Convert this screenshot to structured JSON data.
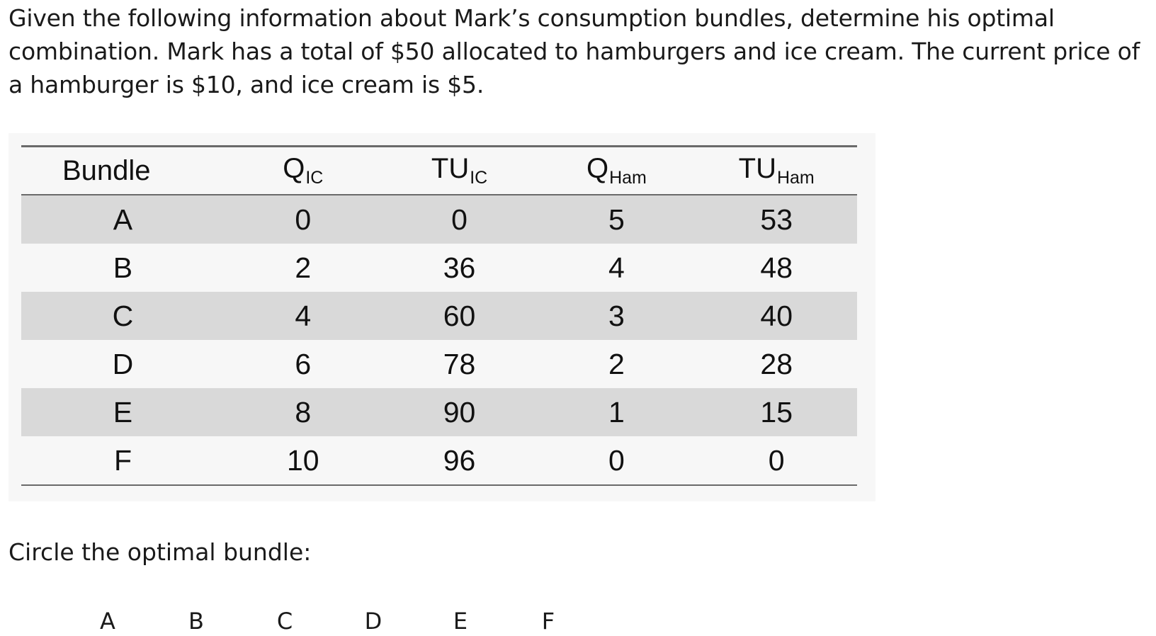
{
  "question": {
    "text": "Given the following information about Mark’s consumption bundles, determine his optimal combination.  Mark has a total of $50 allocated to hamburgers and ice cream.  The current price of a hamburger is $10, and ice cream is $5."
  },
  "table": {
    "headers": {
      "bundle": "Bundle",
      "q_ic": {
        "main": "Q",
        "sub": "IC"
      },
      "tu_ic": {
        "main": "TU",
        "sub": "IC"
      },
      "q_ham": {
        "main": "Q",
        "sub": "Ham"
      },
      "tu_ham": {
        "main": "TU",
        "sub": "Ham"
      }
    },
    "rows": [
      {
        "bundle": "A",
        "q_ic": "0",
        "tu_ic": "0",
        "q_ham": "5",
        "tu_ham": "53"
      },
      {
        "bundle": "B",
        "q_ic": "2",
        "tu_ic": "36",
        "q_ham": "4",
        "tu_ham": "48"
      },
      {
        "bundle": "C",
        "q_ic": "4",
        "tu_ic": "60",
        "q_ham": "3",
        "tu_ham": "40"
      },
      {
        "bundle": "D",
        "q_ic": "6",
        "tu_ic": "78",
        "q_ham": "2",
        "tu_ham": "28"
      },
      {
        "bundle": "E",
        "q_ic": "8",
        "tu_ic": "90",
        "q_ham": "1",
        "tu_ham": "15"
      },
      {
        "bundle": "F",
        "q_ic": "10",
        "tu_ic": "96",
        "q_ham": "0",
        "tu_ham": "0"
      }
    ],
    "shaded_row_color": "#d9d9d9",
    "rule_color": "#6a6a6a"
  },
  "prompt": {
    "text": "Circle the optimal bundle:"
  },
  "options": [
    "A",
    "B",
    "C",
    "D",
    "E",
    "F"
  ]
}
